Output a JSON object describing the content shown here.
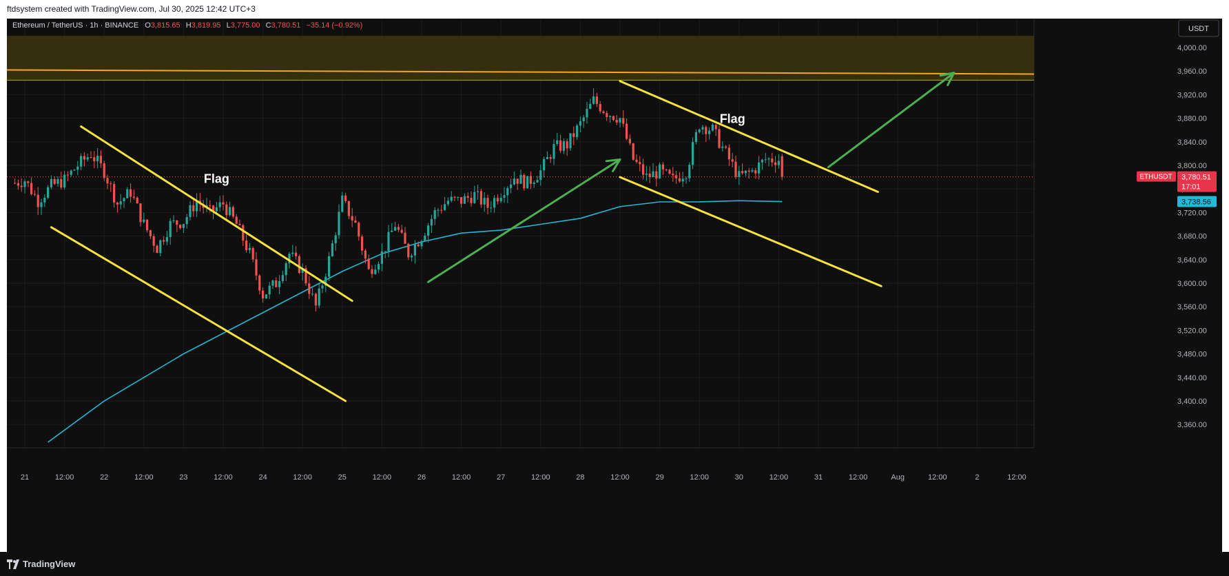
{
  "header": {
    "caption": "ftdsystem created with TradingView.com, Jul 30, 2025 12:42 UTC+3"
  },
  "legend": {
    "symbol": "Ethereum / TetherUS · 1h · BINANCE",
    "open_label": "O",
    "open": "3,815.65",
    "high_label": "H",
    "high": "3,819.95",
    "low_label": "L",
    "low": "3,775.00",
    "close_label": "C",
    "close": "3,780.51",
    "change": "−35.14 (−0.92%)"
  },
  "currency_button": "USDT",
  "price_tag": {
    "symbol": "ETHUSDT",
    "price": "3,780.51",
    "countdown": "17:01"
  },
  "ma_tag": "3,738.56",
  "annotations": {
    "flag_left": "Flag",
    "flag_right": "Flag"
  },
  "footer": {
    "brand": "TradingView"
  },
  "colors": {
    "background": "#0f0f0f",
    "up": "#26a69a",
    "down": "#ef5350",
    "ma": "#22b8d6",
    "trendline": "#f7e33a",
    "arrow": "#4caf50",
    "resistance": "#f5a623",
    "zone": "#3b3310",
    "price_tag": "#e8354a"
  },
  "chart_data": {
    "type": "candlestick",
    "symbol": "Ethereum / TetherUS",
    "interval": "1h",
    "exchange": "BINANCE",
    "ylim": [
      3320,
      4020
    ],
    "y_ticks": [
      "4,000.00",
      "3,960.00",
      "3,920.00",
      "3,880.00",
      "3,840.00",
      "3,800.00",
      "3,760.00",
      "3,720.00",
      "3,680.00",
      "3,640.00",
      "3,600.00",
      "3,560.00",
      "3,520.00",
      "3,480.00",
      "3,440.00",
      "3,400.00",
      "3,360.00"
    ],
    "y_tick_values": [
      4000,
      3960,
      3920,
      3880,
      3840,
      3800,
      3760,
      3720,
      3680,
      3640,
      3600,
      3560,
      3520,
      3480,
      3440,
      3400,
      3360
    ],
    "x_ticks": [
      {
        "label": "21",
        "t": 0
      },
      {
        "label": "12:00",
        "t": 12
      },
      {
        "label": "22",
        "t": 24
      },
      {
        "label": "12:00",
        "t": 36
      },
      {
        "label": "23",
        "t": 48
      },
      {
        "label": "12:00",
        "t": 60
      },
      {
        "label": "24",
        "t": 72
      },
      {
        "label": "12:00",
        "t": 84
      },
      {
        "label": "25",
        "t": 96
      },
      {
        "label": "12:00",
        "t": 108
      },
      {
        "label": "26",
        "t": 120
      },
      {
        "label": "12:00",
        "t": 132
      },
      {
        "label": "27",
        "t": 144
      },
      {
        "label": "12:00",
        "t": 156
      },
      {
        "label": "28",
        "t": 168
      },
      {
        "label": "12:00",
        "t": 180
      },
      {
        "label": "29",
        "t": 192
      },
      {
        "label": "12:00",
        "t": 204
      },
      {
        "label": "30",
        "t": 216
      },
      {
        "label": "12:00",
        "t": 228
      },
      {
        "label": "31",
        "t": 240
      },
      {
        "label": "12:00",
        "t": 252
      },
      {
        "label": "Aug",
        "t": 264
      },
      {
        "label": "12:00",
        "t": 276
      },
      {
        "label": "2",
        "t": 288
      },
      {
        "label": "12:00",
        "t": 300
      }
    ],
    "close_path": [
      [
        -3,
        3770
      ],
      [
        0,
        3775
      ],
      [
        4,
        3740
      ],
      [
        8,
        3765
      ],
      [
        12,
        3775
      ],
      [
        16,
        3800
      ],
      [
        20,
        3820
      ],
      [
        24,
        3790
      ],
      [
        28,
        3735
      ],
      [
        32,
        3755
      ],
      [
        36,
        3700
      ],
      [
        40,
        3660
      ],
      [
        44,
        3700
      ],
      [
        48,
        3705
      ],
      [
        52,
        3740
      ],
      [
        56,
        3720
      ],
      [
        60,
        3735
      ],
      [
        64,
        3700
      ],
      [
        68,
        3650
      ],
      [
        72,
        3580
      ],
      [
        76,
        3600
      ],
      [
        80,
        3650
      ],
      [
        84,
        3620
      ],
      [
        88,
        3560
      ],
      [
        92,
        3640
      ],
      [
        96,
        3740
      ],
      [
        100,
        3700
      ],
      [
        104,
        3620
      ],
      [
        108,
        3650
      ],
      [
        112,
        3700
      ],
      [
        116,
        3650
      ],
      [
        120,
        3680
      ],
      [
        124,
        3720
      ],
      [
        128,
        3740
      ],
      [
        132,
        3740
      ],
      [
        136,
        3750
      ],
      [
        140,
        3730
      ],
      [
        144,
        3755
      ],
      [
        148,
        3780
      ],
      [
        152,
        3770
      ],
      [
        156,
        3790
      ],
      [
        160,
        3830
      ],
      [
        164,
        3835
      ],
      [
        168,
        3870
      ],
      [
        172,
        3910
      ],
      [
        176,
        3890
      ],
      [
        180,
        3880
      ],
      [
        184,
        3810
      ],
      [
        188,
        3780
      ],
      [
        192,
        3790
      ],
      [
        196,
        3775
      ],
      [
        200,
        3790
      ],
      [
        204,
        3870
      ],
      [
        208,
        3860
      ],
      [
        212,
        3820
      ],
      [
        216,
        3780
      ],
      [
        220,
        3790
      ],
      [
        224,
        3810
      ],
      [
        228,
        3810
      ],
      [
        229,
        3780
      ]
    ],
    "last_price": 3780.51,
    "open": 3815.65,
    "high": 3819.95,
    "low": 3775.0,
    "close": 3780.51,
    "change": -35.14,
    "change_pct": -0.92,
    "moving_average": {
      "last_value": 3738.56,
      "points": [
        [
          7,
          3330
        ],
        [
          24,
          3400
        ],
        [
          48,
          3480
        ],
        [
          72,
          3550
        ],
        [
          96,
          3620
        ],
        [
          108,
          3650
        ],
        [
          120,
          3670
        ],
        [
          132,
          3685
        ],
        [
          144,
          3690
        ],
        [
          156,
          3700
        ],
        [
          168,
          3710
        ],
        [
          180,
          3730
        ],
        [
          192,
          3738
        ],
        [
          204,
          3738
        ],
        [
          216,
          3740
        ],
        [
          229,
          3738.56
        ]
      ]
    },
    "resistance_zone": [
      3945,
      4020
    ],
    "resistance_line": {
      "from": [
        0,
        3962
      ],
      "to": [
        304,
        3955
      ]
    },
    "trendlines": [
      {
        "name": "flag-1-upper",
        "from": [
          17,
          3866
        ],
        "to": [
          99,
          3570
        ]
      },
      {
        "name": "flag-1-lower",
        "from": [
          8,
          3695
        ],
        "to": [
          97,
          3400
        ]
      },
      {
        "name": "flag-2-upper",
        "from": [
          180,
          3943
        ],
        "to": [
          258,
          3755
        ]
      },
      {
        "name": "flag-2-lower",
        "from": [
          180,
          3780
        ],
        "to": [
          259,
          3595
        ]
      }
    ],
    "arrows": [
      {
        "name": "arrow-1",
        "from": [
          122,
          3602
        ],
        "to": [
          180,
          3810
        ]
      },
      {
        "name": "arrow-2",
        "from": [
          243,
          3797
        ],
        "to": [
          281,
          3957
        ]
      }
    ],
    "labels": [
      {
        "key": "flag_left",
        "t": 58,
        "price": 3770
      },
      {
        "key": "flag_right",
        "t": 214,
        "price": 3872
      }
    ]
  }
}
